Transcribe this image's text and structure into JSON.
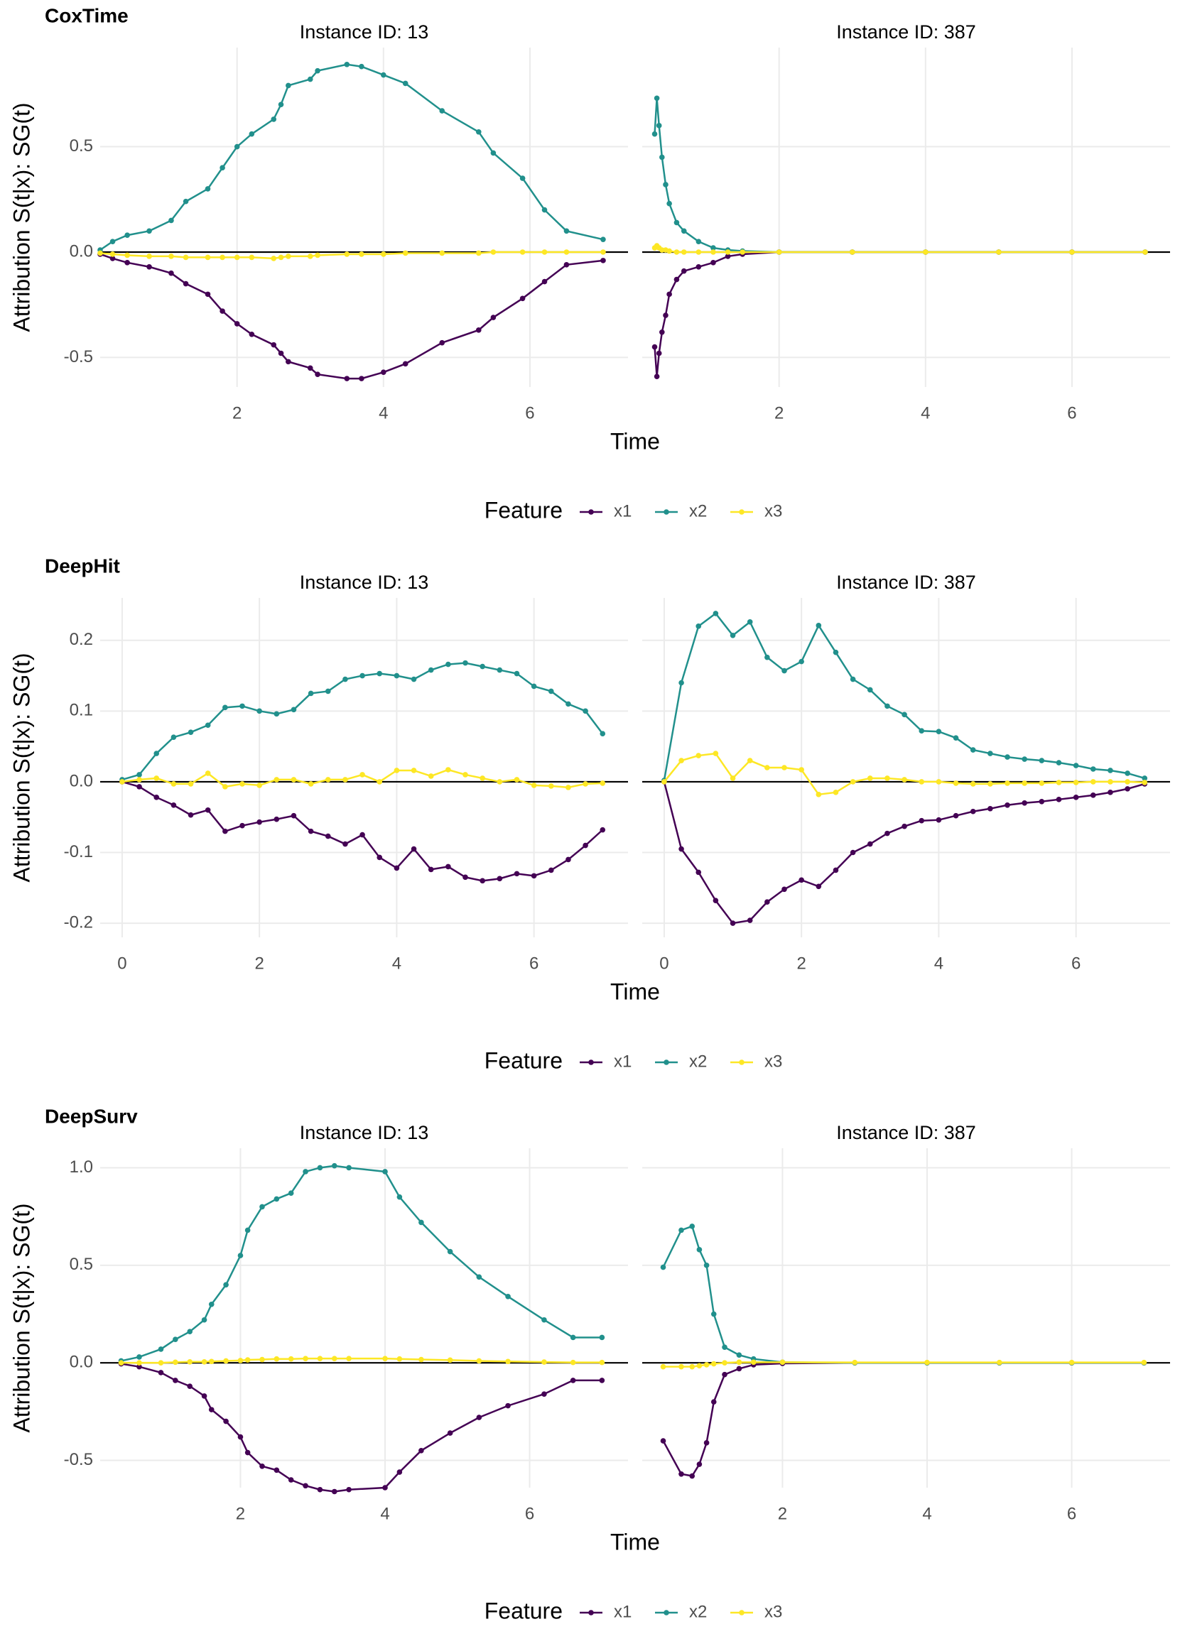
{
  "chart_data": [
    {
      "type": "line",
      "title": "CoxTime",
      "xlabel": "Time",
      "ylabel": "Attribution S(t|x): SG(t)",
      "legend_title": "Feature",
      "xlim": [
        0.13,
        7.34
      ],
      "xticks": [
        2,
        4,
        6
      ],
      "ylim": [
        -0.64,
        0.97
      ],
      "yticks": [
        -0.5,
        {
          "value": 0,
          "label": "0.0"
        },
        0.5
      ],
      "hline": 0,
      "grid": true,
      "facets": [
        {
          "subtitle": "Instance ID: 13",
          "x": [
            0.13,
            0.3,
            0.5,
            0.8,
            1.1,
            1.3,
            1.6,
            1.8,
            2.0,
            2.2,
            2.5,
            2.6,
            2.7,
            3.0,
            3.1,
            3.5,
            3.7,
            4.0,
            4.3,
            4.8,
            5.3,
            5.5,
            5.9,
            6.2,
            6.5,
            7.0
          ],
          "series": [
            {
              "name": "x1",
              "color": "#440154",
              "values": [
                -0.01,
                -0.03,
                -0.05,
                -0.07,
                -0.1,
                -0.15,
                -0.2,
                -0.28,
                -0.34,
                -0.39,
                -0.44,
                -0.48,
                -0.52,
                -0.55,
                -0.58,
                -0.6,
                -0.6,
                -0.57,
                -0.53,
                -0.43,
                -0.37,
                -0.31,
                -0.22,
                -0.14,
                -0.06,
                -0.04
              ]
            },
            {
              "name": "x2",
              "color": "#21908C",
              "values": [
                0.01,
                0.05,
                0.08,
                0.1,
                0.15,
                0.24,
                0.3,
                0.4,
                0.5,
                0.56,
                0.63,
                0.7,
                0.79,
                0.82,
                0.86,
                0.89,
                0.88,
                0.84,
                0.8,
                0.67,
                0.57,
                0.47,
                0.35,
                0.2,
                0.1,
                0.06
              ]
            },
            {
              "name": "x3",
              "color": "#FDE725",
              "values": [
                -0.005,
                -0.01,
                -0.015,
                -0.02,
                -0.02,
                -0.025,
                -0.025,
                -0.025,
                -0.025,
                -0.025,
                -0.03,
                -0.025,
                -0.02,
                -0.02,
                -0.015,
                -0.01,
                -0.01,
                -0.01,
                -0.005,
                -0.005,
                -0.005,
                0,
                0,
                0,
                0,
                0
              ]
            }
          ]
        },
        {
          "subtitle": "Instance ID: 387",
          "x": [
            0.3,
            0.33,
            0.36,
            0.4,
            0.45,
            0.5,
            0.6,
            0.7,
            0.9,
            1.1,
            1.3,
            1.5,
            2,
            3,
            4,
            5,
            6,
            7
          ],
          "series": [
            {
              "name": "x1",
              "color": "#440154",
              "values": [
                -0.45,
                -0.59,
                -0.48,
                -0.38,
                -0.3,
                -0.2,
                -0.13,
                -0.09,
                -0.07,
                -0.05,
                -0.02,
                -0.01,
                0,
                0,
                0,
                0,
                0,
                0
              ]
            },
            {
              "name": "x2",
              "color": "#21908C",
              "values": [
                0.56,
                0.73,
                0.6,
                0.45,
                0.32,
                0.23,
                0.14,
                0.1,
                0.05,
                0.02,
                0.01,
                0.005,
                0,
                0,
                0,
                0,
                0,
                0
              ]
            },
            {
              "name": "x3",
              "color": "#FDE725",
              "values": [
                0.02,
                0.03,
                0.02,
                0.01,
                0.01,
                0.005,
                0,
                0,
                0,
                0,
                0,
                0,
                0,
                0,
                0,
                0,
                0,
                0
              ]
            }
          ]
        }
      ]
    },
    {
      "type": "line",
      "title": "DeepHit",
      "xlabel": "Time",
      "ylabel": "Attribution S(t|x): SG(t)",
      "legend_title": "Feature",
      "xlim": [
        -0.32,
        7.37
      ],
      "xticks": [
        0,
        2,
        4,
        6
      ],
      "ylim": [
        -0.22,
        0.26
      ],
      "yticks": [
        -0.2,
        -0.1,
        {
          "value": 0,
          "label": "0.0"
        },
        0.1,
        0.2
      ],
      "hline": 0,
      "grid": true,
      "facets": [
        {
          "subtitle": "Instance ID: 13",
          "x": [
            0,
            0.25,
            0.5,
            0.75,
            1,
            1.25,
            1.5,
            1.75,
            2,
            2.25,
            2.5,
            2.75,
            3,
            3.25,
            3.5,
            3.75,
            4,
            4.25,
            4.5,
            4.75,
            5,
            5.25,
            5.5,
            5.75,
            6,
            6.25,
            6.5,
            6.75,
            7
          ],
          "series": [
            {
              "name": "x1",
              "color": "#440154",
              "values": [
                0,
                -0.007,
                -0.022,
                -0.033,
                -0.047,
                -0.04,
                -0.07,
                -0.062,
                -0.057,
                -0.053,
                -0.048,
                -0.07,
                -0.077,
                -0.088,
                -0.075,
                -0.107,
                -0.122,
                -0.095,
                -0.124,
                -0.12,
                -0.135,
                -0.14,
                -0.137,
                -0.13,
                -0.133,
                -0.125,
                -0.11,
                -0.09,
                -0.068
              ]
            },
            {
              "name": "x2",
              "color": "#21908C",
              "values": [
                0.003,
                0.01,
                0.04,
                0.063,
                0.07,
                0.08,
                0.105,
                0.107,
                0.1,
                0.096,
                0.102,
                0.125,
                0.128,
                0.145,
                0.15,
                0.153,
                0.15,
                0.145,
                0.158,
                0.166,
                0.168,
                0.163,
                0.158,
                0.153,
                0.135,
                0.128,
                0.11,
                0.1,
                0.068
              ]
            },
            {
              "name": "x3",
              "color": "#FDE725",
              "values": [
                0,
                0.003,
                0.005,
                -0.003,
                -0.003,
                0.012,
                -0.007,
                -0.003,
                -0.005,
                0.003,
                0.003,
                -0.003,
                0.003,
                0.003,
                0.01,
                0,
                0.016,
                0.016,
                0.008,
                0.017,
                0.01,
                0.005,
                0,
                0.003,
                -0.005,
                -0.006,
                -0.008,
                -0.003,
                -0.002
              ]
            }
          ]
        },
        {
          "subtitle": "Instance ID: 387",
          "x": [
            0,
            0.25,
            0.5,
            0.75,
            1,
            1.25,
            1.5,
            1.75,
            2,
            2.25,
            2.5,
            2.75,
            3,
            3.25,
            3.5,
            3.75,
            4,
            4.25,
            4.5,
            4.75,
            5,
            5.25,
            5.5,
            5.75,
            6,
            6.25,
            6.5,
            6.75,
            7
          ],
          "series": [
            {
              "name": "x1",
              "color": "#440154",
              "values": [
                0,
                -0.095,
                -0.128,
                -0.168,
                -0.2,
                -0.196,
                -0.17,
                -0.152,
                -0.139,
                -0.148,
                -0.125,
                -0.1,
                -0.088,
                -0.073,
                -0.063,
                -0.055,
                -0.054,
                -0.048,
                -0.042,
                -0.038,
                -0.033,
                -0.03,
                -0.028,
                -0.025,
                -0.022,
                -0.019,
                -0.015,
                -0.01,
                -0.003
              ]
            },
            {
              "name": "x2",
              "color": "#21908C",
              "values": [
                0.002,
                0.14,
                0.22,
                0.238,
                0.207,
                0.226,
                0.176,
                0.157,
                0.17,
                0.221,
                0.183,
                0.145,
                0.13,
                0.107,
                0.095,
                0.072,
                0.071,
                0.062,
                0.045,
                0.04,
                0.035,
                0.032,
                0.03,
                0.027,
                0.023,
                0.018,
                0.016,
                0.012,
                0.005
              ]
            },
            {
              "name": "x3",
              "color": "#FDE725",
              "values": [
                0,
                0.03,
                0.037,
                0.04,
                0.005,
                0.03,
                0.02,
                0.02,
                0.017,
                -0.018,
                -0.015,
                0,
                0.005,
                0.005,
                0.003,
                0,
                0,
                -0.002,
                -0.003,
                -0.003,
                -0.002,
                -0.002,
                -0.002,
                -0.001,
                -0.001,
                0,
                0,
                0,
                -0.001
              ]
            }
          ]
        }
      ]
    },
    {
      "type": "line",
      "title": "DeepSurv",
      "xlabel": "Time",
      "ylabel": "Attribution S(t|x): SG(t)",
      "legend_title": "Feature",
      "xlim": [
        0.06,
        7.36
      ],
      "xticks": [
        2,
        4,
        6
      ],
      "ylim": [
        -0.64,
        1.1
      ],
      "yticks": [
        -0.5,
        {
          "value": 0,
          "label": "0.0"
        },
        0.5,
        {
          "value": 1,
          "label": "1.0"
        }
      ],
      "hline": 0,
      "grid": true,
      "facets": [
        {
          "subtitle": "Instance ID: 13",
          "x": [
            0.35,
            0.6,
            0.9,
            1.1,
            1.3,
            1.5,
            1.6,
            1.8,
            2.0,
            2.1,
            2.3,
            2.5,
            2.7,
            2.9,
            3.1,
            3.3,
            3.5,
            4.0,
            4.2,
            4.5,
            4.9,
            5.3,
            5.7,
            6.2,
            6.6,
            7.0
          ],
          "series": [
            {
              "name": "x1",
              "color": "#440154",
              "values": [
                -0.005,
                -0.02,
                -0.05,
                -0.09,
                -0.12,
                -0.17,
                -0.24,
                -0.3,
                -0.38,
                -0.46,
                -0.53,
                -0.55,
                -0.6,
                -0.63,
                -0.65,
                -0.66,
                -0.65,
                -0.64,
                -0.56,
                -0.45,
                -0.36,
                -0.28,
                -0.22,
                -0.16,
                -0.09,
                -0.09
              ]
            },
            {
              "name": "x2",
              "color": "#21908C",
              "values": [
                0.01,
                0.03,
                0.07,
                0.12,
                0.16,
                0.22,
                0.3,
                0.4,
                0.55,
                0.68,
                0.8,
                0.84,
                0.87,
                0.98,
                1.0,
                1.01,
                1.0,
                0.98,
                0.85,
                0.72,
                0.57,
                0.44,
                0.34,
                0.22,
                0.13,
                0.13
              ]
            },
            {
              "name": "x3",
              "color": "#FDE725",
              "values": [
                0,
                0,
                0,
                0.003,
                0.005,
                0.005,
                0.007,
                0.01,
                0.012,
                0.015,
                0.017,
                0.02,
                0.02,
                0.022,
                0.022,
                0.022,
                0.022,
                0.022,
                0.02,
                0.017,
                0.014,
                0.01,
                0.007,
                0.004,
                0.002,
                0.002
              ]
            }
          ]
        },
        {
          "subtitle": "Instance ID: 387",
          "x": [
            0.35,
            0.6,
            0.75,
            0.85,
            0.95,
            1.05,
            1.2,
            1.4,
            1.6,
            2,
            3,
            4,
            5,
            6,
            7
          ],
          "series": [
            {
              "name": "x1",
              "color": "#440154",
              "values": [
                -0.4,
                -0.57,
                -0.58,
                -0.52,
                -0.41,
                -0.2,
                -0.06,
                -0.03,
                -0.01,
                -0.003,
                0,
                0,
                0,
                0,
                0
              ]
            },
            {
              "name": "x2",
              "color": "#21908C",
              "values": [
                0.49,
                0.68,
                0.7,
                0.58,
                0.5,
                0.25,
                0.08,
                0.04,
                0.02,
                0.003,
                0,
                0,
                0,
                0,
                0
              ]
            },
            {
              "name": "x3",
              "color": "#FDE725",
              "values": [
                -0.02,
                -0.02,
                -0.02,
                -0.015,
                -0.01,
                -0.005,
                0,
                0.003,
                0.003,
                0.003,
                0.002,
                0.002,
                0.002,
                0.002,
                0.002
              ]
            }
          ]
        }
      ]
    }
  ]
}
